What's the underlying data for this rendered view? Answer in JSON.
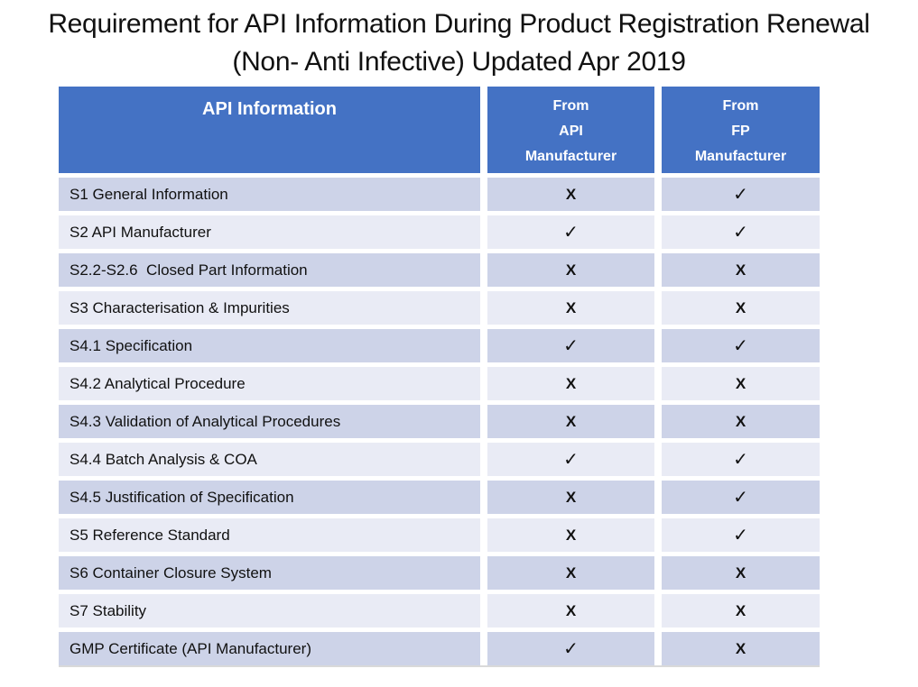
{
  "title": {
    "line1": "Requirement for API Information During Product Registration Renewal",
    "line2": "(Non- Anti Infective) Updated Apr 2019"
  },
  "table": {
    "columns": [
      {
        "label": "API Information"
      },
      {
        "label": "From\nAPI\nManufacturer"
      },
      {
        "label": "From\nFP\nManufacturer"
      }
    ],
    "rows": [
      {
        "item": "S1 General Information",
        "api_manufacturer": "X",
        "fp_manufacturer": "✓"
      },
      {
        "item": "S2 API Manufacturer",
        "api_manufacturer": "✓",
        "fp_manufacturer": "✓"
      },
      {
        "item": "S2.2-S2.6  Closed Part Information",
        "api_manufacturer": "X",
        "fp_manufacturer": "X"
      },
      {
        "item": "S3 Characterisation & Impurities",
        "api_manufacturer": "X",
        "fp_manufacturer": "X"
      },
      {
        "item": "S4.1 Specification",
        "api_manufacturer": "✓",
        "fp_manufacturer": "✓"
      },
      {
        "item": "S4.2 Analytical Procedure",
        "api_manufacturer": "X",
        "fp_manufacturer": "X"
      },
      {
        "item": "S4.3 Validation of Analytical Procedures",
        "api_manufacturer": "X",
        "fp_manufacturer": "X"
      },
      {
        "item": "S4.4 Batch Analysis & COA",
        "api_manufacturer": "✓",
        "fp_manufacturer": "✓"
      },
      {
        "item": "S4.5 Justification of Specification",
        "api_manufacturer": "X",
        "fp_manufacturer": "✓"
      },
      {
        "item": "S5 Reference Standard",
        "api_manufacturer": "X",
        "fp_manufacturer": "✓"
      },
      {
        "item": "S6 Container Closure System",
        "api_manufacturer": "X",
        "fp_manufacturer": "X"
      },
      {
        "item": "S7 Stability",
        "api_manufacturer": "X",
        "fp_manufacturer": "X"
      },
      {
        "item": "GMP Certificate (API Manufacturer)",
        "api_manufacturer": "✓",
        "fp_manufacturer": "X"
      }
    ]
  },
  "symbols": {
    "check": "✓",
    "cross": "X"
  },
  "colors": {
    "header_background": "#4472C4",
    "header_text": "#FFFFFF",
    "row_band_dark": "#CDD3E8",
    "row_band_light": "#E9EBF5",
    "body_text": "#111111",
    "title_text": "#111111"
  }
}
